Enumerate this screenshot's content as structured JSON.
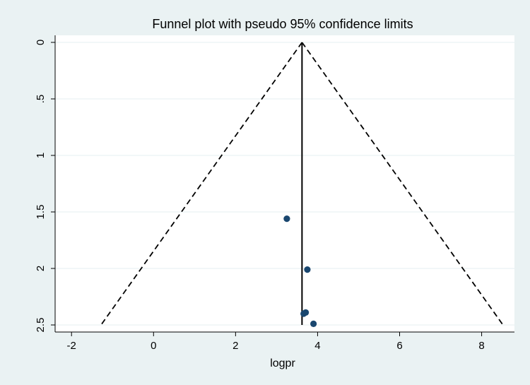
{
  "chart_data": {
    "type": "scatter",
    "title": "Funnel plot with pseudo 95% confidence limits",
    "xlabel": "logpr",
    "ylabel": "",
    "xlim": [
      -2.4,
      8.8
    ],
    "ylim": [
      0,
      2.5
    ],
    "y_reversed": true,
    "x_ticks": [
      -2,
      0,
      2,
      4,
      6,
      8
    ],
    "x_tick_labels": [
      "-2",
      "0",
      "2",
      "4",
      "6",
      "8"
    ],
    "y_ticks": [
      0,
      0.5,
      1,
      1.5,
      2,
      2.5
    ],
    "y_tick_labels": [
      "0",
      ".5",
      "1",
      "1.5",
      "2",
      "2.5"
    ],
    "grid": true,
    "pooled_effect": 3.62,
    "funnel_apex": [
      3.62,
      0
    ],
    "funnel_base_left": [
      -1.28,
      2.5
    ],
    "funnel_base_right": [
      8.52,
      2.5
    ],
    "points": [
      {
        "x": 3.25,
        "y": 1.56
      },
      {
        "x": 3.75,
        "y": 2.01
      },
      {
        "x": 3.66,
        "y": 2.4
      },
      {
        "x": 3.71,
        "y": 2.39
      },
      {
        "x": 3.9,
        "y": 2.49
      }
    ]
  }
}
